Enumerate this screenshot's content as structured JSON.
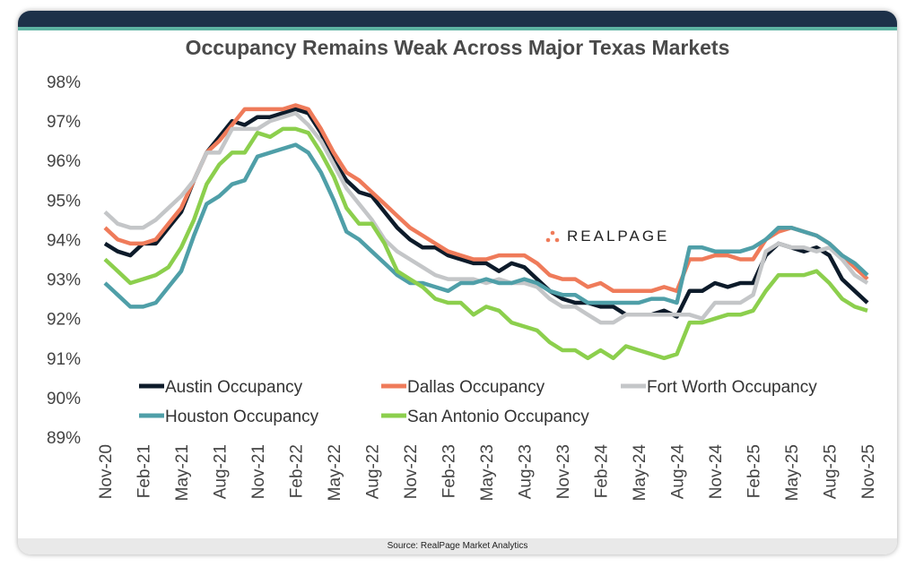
{
  "chart_data": {
    "type": "line",
    "title": "Occupancy Remains Weak Across Major Texas Markets",
    "xlabel": "",
    "ylabel": "",
    "ylim": [
      89,
      98
    ],
    "y_ticks": [
      "89%",
      "90%",
      "91%",
      "92%",
      "93%",
      "94%",
      "95%",
      "96%",
      "97%",
      "98%"
    ],
    "x_tick_labels": [
      "Nov-20",
      "Feb-21",
      "May-21",
      "Aug-21",
      "Nov-21",
      "Feb-22",
      "May-22",
      "Aug-22",
      "Nov-22",
      "Feb-23",
      "May-23",
      "Aug-23",
      "Nov-23",
      "Feb-24",
      "May-24",
      "Aug-24",
      "Nov-24",
      "Feb-25",
      "May-25",
      "Aug-25",
      "Nov-25"
    ],
    "x_range": [
      "Nov-20",
      "Nov-25"
    ],
    "x_frequency": "monthly",
    "grid": false,
    "legend_position": "bottom-inside",
    "series": [
      {
        "name": "Austin Occupancy",
        "color": "#0d1b2a",
        "values": [
          93.9,
          93.7,
          93.6,
          93.9,
          93.9,
          94.3,
          94.7,
          95.5,
          96.2,
          96.6,
          97.0,
          96.9,
          97.1,
          97.1,
          97.2,
          97.3,
          97.2,
          96.7,
          96.0,
          95.5,
          95.2,
          95.1,
          94.7,
          94.3,
          94.0,
          93.8,
          93.8,
          93.6,
          93.5,
          93.4,
          93.4,
          93.2,
          93.4,
          93.3,
          93.0,
          92.7,
          92.5,
          92.4,
          92.4,
          92.3,
          92.3,
          92.1,
          92.1,
          92.1,
          92.2,
          92.05,
          92.7,
          92.7,
          92.9,
          92.8,
          92.9,
          92.9,
          93.6,
          93.9,
          93.8,
          93.7,
          93.8,
          93.6,
          93.0,
          92.7,
          92.4
        ]
      },
      {
        "name": "Dallas Occupancy",
        "color": "#ef7b5a",
        "values": [
          94.3,
          94.0,
          93.9,
          93.9,
          94.0,
          94.4,
          94.8,
          95.5,
          96.2,
          96.5,
          96.9,
          97.3,
          97.3,
          97.3,
          97.3,
          97.4,
          97.3,
          96.8,
          96.2,
          95.7,
          95.5,
          95.2,
          94.9,
          94.6,
          94.3,
          94.1,
          93.9,
          93.7,
          93.6,
          93.5,
          93.5,
          93.6,
          93.6,
          93.6,
          93.4,
          93.1,
          93.0,
          93.0,
          92.8,
          92.9,
          92.7,
          92.7,
          92.7,
          92.7,
          92.8,
          92.7,
          93.5,
          93.5,
          93.6,
          93.6,
          93.5,
          93.5,
          94.0,
          94.2,
          94.3,
          94.2,
          94.1,
          93.9,
          93.6,
          93.3,
          93.0
        ]
      },
      {
        "name": "Fort Worth Occupancy",
        "color": "#c4c6c8",
        "values": [
          94.7,
          94.4,
          94.3,
          94.3,
          94.5,
          94.8,
          95.1,
          95.5,
          96.2,
          96.2,
          96.8,
          96.8,
          96.8,
          97.0,
          97.1,
          97.2,
          96.9,
          96.5,
          95.9,
          95.3,
          94.9,
          94.5,
          94.0,
          93.7,
          93.5,
          93.3,
          93.1,
          93.0,
          93.0,
          93.0,
          92.9,
          93.0,
          92.9,
          92.9,
          92.8,
          92.5,
          92.3,
          92.3,
          92.1,
          91.9,
          91.9,
          92.1,
          92.1,
          92.1,
          92.1,
          92.1,
          92.1,
          92.0,
          92.4,
          92.4,
          92.4,
          92.6,
          93.7,
          93.9,
          93.8,
          93.8,
          93.7,
          93.8,
          93.5,
          93.1,
          92.9
        ]
      },
      {
        "name": "Houston Occupancy",
        "color": "#4f9fa8",
        "values": [
          92.9,
          92.6,
          92.3,
          92.3,
          92.4,
          92.8,
          93.2,
          94.1,
          94.9,
          95.1,
          95.4,
          95.5,
          96.1,
          96.2,
          96.3,
          96.4,
          96.2,
          95.7,
          95.0,
          94.2,
          94.0,
          93.7,
          93.4,
          93.1,
          92.9,
          92.9,
          92.8,
          92.7,
          92.9,
          92.9,
          93.0,
          92.9,
          92.9,
          93.0,
          92.9,
          92.7,
          92.6,
          92.6,
          92.4,
          92.4,
          92.4,
          92.4,
          92.4,
          92.5,
          92.5,
          92.4,
          93.8,
          93.8,
          93.7,
          93.7,
          93.7,
          93.8,
          94.0,
          94.3,
          94.3,
          94.2,
          94.1,
          93.9,
          93.6,
          93.4,
          93.1
        ]
      },
      {
        "name": "San Antonio Occupancy",
        "color": "#8ccf4d",
        "values": [
          93.5,
          93.2,
          92.9,
          93.0,
          93.1,
          93.3,
          93.8,
          94.5,
          95.4,
          95.9,
          96.2,
          96.2,
          96.7,
          96.6,
          96.8,
          96.8,
          96.7,
          96.2,
          95.6,
          94.8,
          94.4,
          94.4,
          93.9,
          93.2,
          93.0,
          92.8,
          92.5,
          92.4,
          92.4,
          92.1,
          92.3,
          92.2,
          91.9,
          91.8,
          91.7,
          91.4,
          91.2,
          91.2,
          91.0,
          91.2,
          91.0,
          91.3,
          91.2,
          91.1,
          91.0,
          91.1,
          91.9,
          91.9,
          92.0,
          92.1,
          92.1,
          92.2,
          92.7,
          93.1,
          93.1,
          93.1,
          93.2,
          92.9,
          92.5,
          92.3,
          92.2
        ]
      }
    ]
  },
  "logo": {
    "text": "REALPAGE",
    "dot_color": "#ef7b5a"
  },
  "footer": {
    "source": "Source: RealPage Market Analytics"
  }
}
